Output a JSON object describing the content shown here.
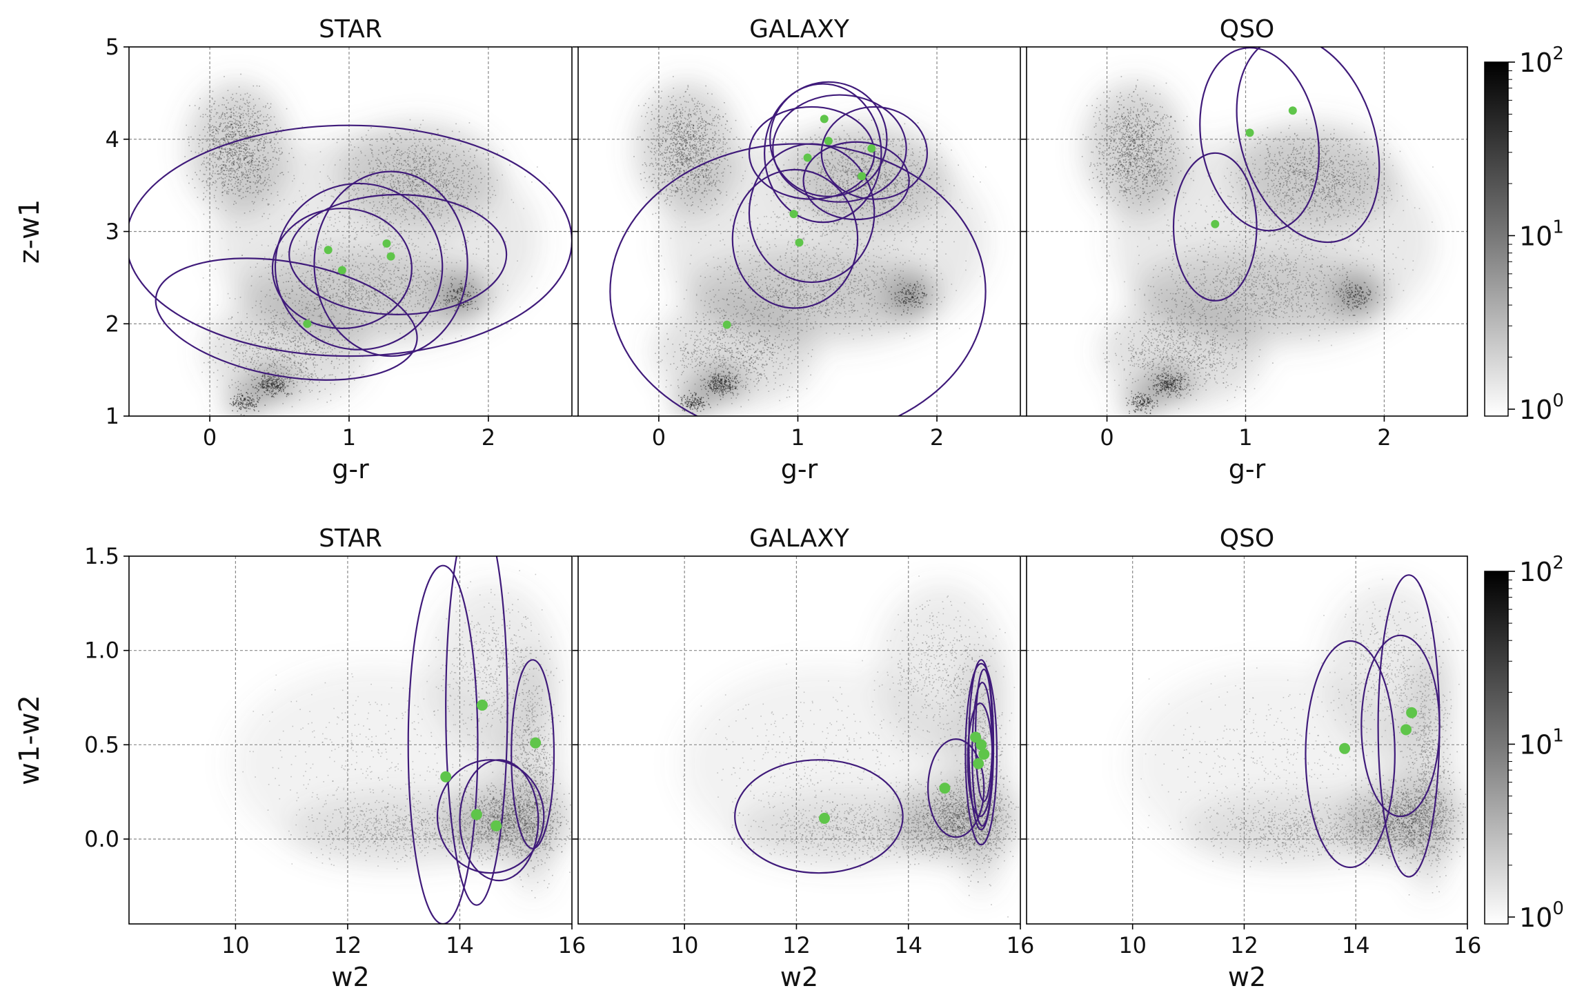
{
  "colors": {
    "ellipse": "#3f1a7a",
    "point": "#5fc54a",
    "density_dark": "#111111",
    "grid": "#888888"
  },
  "rows": [
    {
      "ylabel": "z-w1",
      "xlabel": "g-r",
      "xlim": [
        -0.58,
        2.6
      ],
      "ylim": [
        1,
        5
      ],
      "xticks": [
        0,
        1,
        2
      ],
      "yticks": [
        1,
        2,
        3,
        4,
        5
      ],
      "ytick_labels": [
        "1",
        "2",
        "3",
        "4",
        "5"
      ],
      "colorbar_ticks": [
        "10",
        "10",
        "10"
      ],
      "colorbar_exponents": [
        "0",
        "1",
        "2"
      ]
    },
    {
      "ylabel": "w1-w2",
      "xlabel": "w2",
      "xlim": [
        8.1,
        16.0
      ],
      "ylim": [
        -0.45,
        1.5
      ],
      "xticks": [
        10,
        12,
        14,
        16
      ],
      "yticks": [
        0.0,
        0.5,
        1.0,
        1.5
      ],
      "ytick_labels": [
        "0.0",
        "0.5",
        "1.0",
        "1.5"
      ],
      "colorbar_ticks": [
        "10",
        "10",
        "10"
      ],
      "colorbar_exponents": [
        "0",
        "1",
        "2"
      ]
    }
  ],
  "chart_data": [
    {
      "type": "scatter",
      "title": "STAR",
      "row": 0,
      "xlabel": "g-r",
      "ylabel": "z-w1",
      "density_background": "2D histogram, log color scale 10^0 to 10^2",
      "points": [
        [
          0.85,
          2.8
        ],
        [
          0.95,
          2.58
        ],
        [
          0.7,
          2.0
        ],
        [
          1.27,
          2.87
        ],
        [
          1.3,
          2.73
        ]
      ],
      "ellipses": [
        {
          "cx": 1.0,
          "cy": 2.9,
          "rx": 1.6,
          "ry": 1.25,
          "angle": 0
        },
        {
          "cx": 0.55,
          "cy": 2.05,
          "rx": 0.95,
          "ry": 0.62,
          "angle": 10
        },
        {
          "cx": 0.95,
          "cy": 2.6,
          "rx": 0.5,
          "ry": 0.65,
          "angle": 0
        },
        {
          "cx": 1.07,
          "cy": 2.62,
          "rx": 0.6,
          "ry": 0.9,
          "angle": 0
        },
        {
          "cx": 1.3,
          "cy": 2.65,
          "rx": 0.55,
          "ry": 1.0,
          "angle": 0
        },
        {
          "cx": 1.35,
          "cy": 2.75,
          "rx": 0.78,
          "ry": 0.65,
          "angle": 0
        }
      ]
    },
    {
      "type": "scatter",
      "title": "GALAXY",
      "row": 0,
      "xlabel": "g-r",
      "ylabel": "z-w1",
      "density_background": "2D histogram, log color scale 10^0 to 10^2",
      "points": [
        [
          1.19,
          4.22
        ],
        [
          1.22,
          3.98
        ],
        [
          1.07,
          3.8
        ],
        [
          1.53,
          3.9
        ],
        [
          1.46,
          3.6
        ],
        [
          0.97,
          3.19
        ],
        [
          1.01,
          2.88
        ],
        [
          0.49,
          1.99
        ]
      ],
      "ellipses": [
        {
          "cx": 1.0,
          "cy": 2.35,
          "rx": 1.35,
          "ry": 1.6,
          "angle": 0
        },
        {
          "cx": 0.98,
          "cy": 2.92,
          "rx": 0.45,
          "ry": 0.75,
          "angle": 0
        },
        {
          "cx": 1.1,
          "cy": 3.2,
          "rx": 0.45,
          "ry": 0.75,
          "angle": 0
        },
        {
          "cx": 1.18,
          "cy": 3.85,
          "rx": 0.42,
          "ry": 0.75,
          "angle": 0
        },
        {
          "cx": 1.22,
          "cy": 4.0,
          "rx": 0.42,
          "ry": 0.62,
          "angle": 0
        },
        {
          "cx": 1.3,
          "cy": 3.9,
          "rx": 0.48,
          "ry": 0.58,
          "angle": 0
        },
        {
          "cx": 1.42,
          "cy": 3.55,
          "rx": 0.38,
          "ry": 0.42,
          "angle": 0
        },
        {
          "cx": 1.55,
          "cy": 3.85,
          "rx": 0.38,
          "ry": 0.5,
          "angle": 0
        },
        {
          "cx": 1.1,
          "cy": 3.85,
          "rx": 0.45,
          "ry": 0.5,
          "angle": 0
        }
      ]
    },
    {
      "type": "scatter",
      "title": "QSO",
      "row": 0,
      "xlabel": "g-r",
      "ylabel": "z-w1",
      "density_background": "2D histogram, log color scale 10^0 to 10^2",
      "points": [
        [
          1.03,
          4.07
        ],
        [
          1.34,
          4.31
        ],
        [
          0.78,
          3.08
        ]
      ],
      "ellipses": [
        {
          "cx": 1.1,
          "cy": 4.0,
          "rx": 0.42,
          "ry": 1.0,
          "angle": -10
        },
        {
          "cx": 1.45,
          "cy": 4.0,
          "rx": 0.48,
          "ry": 1.15,
          "angle": -18
        },
        {
          "cx": 0.78,
          "cy": 3.05,
          "rx": 0.3,
          "ry": 0.8,
          "angle": 0
        }
      ]
    },
    {
      "type": "scatter",
      "title": "STAR",
      "row": 1,
      "xlabel": "w2",
      "ylabel": "w1-w2",
      "density_background": "2D histogram, log color scale 10^0 to 10^2",
      "points": [
        [
          14.4,
          0.71
        ],
        [
          15.35,
          0.51
        ],
        [
          13.75,
          0.33
        ],
        [
          14.3,
          0.13
        ],
        [
          14.65,
          0.07
        ]
      ],
      "ellipses": [
        {
          "cx": 13.7,
          "cy": 0.5,
          "rx": 0.62,
          "ry": 0.95,
          "angle": 0
        },
        {
          "cx": 14.3,
          "cy": 0.7,
          "rx": 0.55,
          "ry": 1.05,
          "angle": 0
        },
        {
          "cx": 15.3,
          "cy": 0.45,
          "rx": 0.38,
          "ry": 0.5,
          "angle": 0
        },
        {
          "cx": 14.55,
          "cy": 0.12,
          "rx": 0.95,
          "ry": 0.3,
          "angle": 0
        },
        {
          "cx": 14.7,
          "cy": 0.1,
          "rx": 0.7,
          "ry": 0.32,
          "angle": 0
        }
      ]
    },
    {
      "type": "scatter",
      "title": "GALAXY",
      "row": 1,
      "xlabel": "w2",
      "ylabel": "w1-w2",
      "density_background": "2D histogram, log color scale 10^0 to 10^2",
      "points": [
        [
          12.5,
          0.11
        ],
        [
          14.65,
          0.27
        ],
        [
          15.2,
          0.54
        ],
        [
          15.3,
          0.5
        ],
        [
          15.25,
          0.4
        ],
        [
          15.35,
          0.45
        ]
      ],
      "ellipses": [
        {
          "cx": 12.4,
          "cy": 0.12,
          "rx": 1.5,
          "ry": 0.3,
          "angle": 0
        },
        {
          "cx": 14.85,
          "cy": 0.27,
          "rx": 0.5,
          "ry": 0.26,
          "angle": 0
        },
        {
          "cx": 15.3,
          "cy": 0.45,
          "rx": 0.28,
          "ry": 0.48,
          "angle": 0
        },
        {
          "cx": 15.3,
          "cy": 0.5,
          "rx": 0.22,
          "ry": 0.45,
          "angle": 0
        },
        {
          "cx": 15.32,
          "cy": 0.45,
          "rx": 0.18,
          "ry": 0.38,
          "angle": 0
        },
        {
          "cx": 15.28,
          "cy": 0.42,
          "rx": 0.22,
          "ry": 0.3,
          "angle": 0
        },
        {
          "cx": 15.35,
          "cy": 0.55,
          "rx": 0.15,
          "ry": 0.35,
          "angle": 0
        }
      ]
    },
    {
      "type": "scatter",
      "title": "QSO",
      "row": 1,
      "xlabel": "w2",
      "ylabel": "w1-w2",
      "density_background": "2D histogram, log color scale 10^0 to 10^2",
      "points": [
        [
          13.8,
          0.48
        ],
        [
          15.0,
          0.67
        ],
        [
          14.9,
          0.58
        ]
      ],
      "ellipses": [
        {
          "cx": 13.9,
          "cy": 0.45,
          "rx": 0.8,
          "ry": 0.6,
          "angle": 0
        },
        {
          "cx": 14.95,
          "cy": 0.6,
          "rx": 0.55,
          "ry": 0.8,
          "angle": 0
        },
        {
          "cx": 14.8,
          "cy": 0.6,
          "rx": 0.7,
          "ry": 0.48,
          "angle": 0
        }
      ]
    }
  ]
}
